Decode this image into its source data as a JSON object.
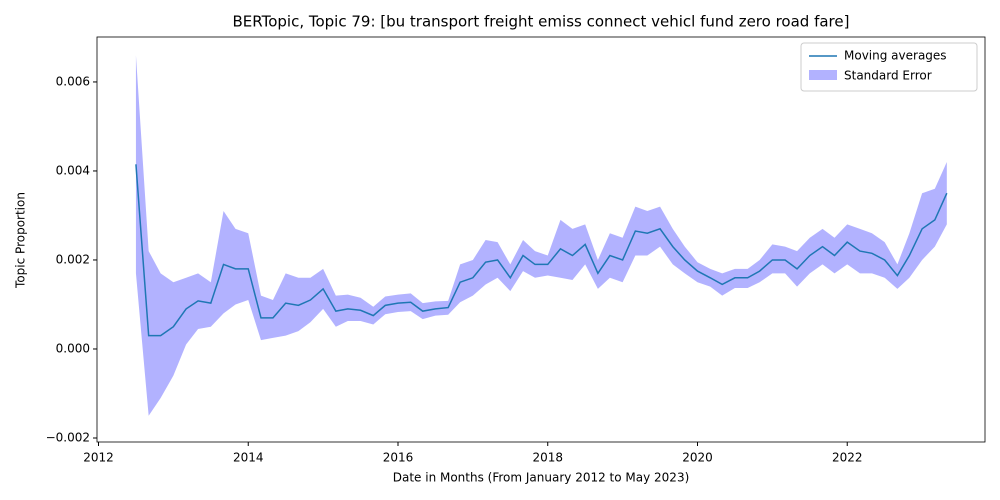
{
  "chart_data": {
    "type": "line",
    "title": "BERTopic, Topic 79: [bu transport freight emiss connect vehicl fund zero road fare]",
    "x_label": "Date in Months (From January 2012 to May 2023)",
    "y_label": "Topic Proportion",
    "x": [
      2012.5,
      2012.67,
      2012.83,
      2013.0,
      2013.17,
      2013.33,
      2013.5,
      2013.67,
      2013.83,
      2014.0,
      2014.17,
      2014.33,
      2014.5,
      2014.67,
      2014.83,
      2015.0,
      2015.17,
      2015.33,
      2015.5,
      2015.67,
      2015.83,
      2016.0,
      2016.17,
      2016.33,
      2016.5,
      2016.67,
      2016.83,
      2017.0,
      2017.17,
      2017.33,
      2017.5,
      2017.67,
      2017.83,
      2018.0,
      2018.17,
      2018.33,
      2018.5,
      2018.67,
      2018.83,
      2019.0,
      2019.17,
      2019.33,
      2019.5,
      2019.67,
      2019.83,
      2020.0,
      2020.17,
      2020.33,
      2020.5,
      2020.67,
      2020.83,
      2021.0,
      2021.17,
      2021.33,
      2021.5,
      2021.67,
      2021.83,
      2022.0,
      2022.17,
      2022.33,
      2022.5,
      2022.67,
      2022.83,
      2023.0,
      2023.17,
      2023.33
    ],
    "series": [
      {
        "name": "Moving averages",
        "color": "#1f77b4",
        "values": [
          0.00415,
          0.0003,
          0.0003,
          0.0005,
          0.0009,
          0.00108,
          0.00103,
          0.0019,
          0.0018,
          0.0018,
          0.0007,
          0.0007,
          0.00103,
          0.00098,
          0.0011,
          0.00135,
          0.00085,
          0.0009,
          0.00087,
          0.00075,
          0.00098,
          0.00103,
          0.00105,
          0.00085,
          0.0009,
          0.00093,
          0.0015,
          0.0016,
          0.00195,
          0.002,
          0.0016,
          0.0021,
          0.0019,
          0.0019,
          0.00225,
          0.0021,
          0.00235,
          0.0017,
          0.0021,
          0.002,
          0.00265,
          0.0026,
          0.0027,
          0.0023,
          0.002,
          0.00175,
          0.0016,
          0.00145,
          0.0016,
          0.0016,
          0.00175,
          0.002,
          0.002,
          0.0018,
          0.0021,
          0.0023,
          0.0021,
          0.0024,
          0.0022,
          0.00215,
          0.002,
          0.00165,
          0.0021,
          0.0027,
          0.0029,
          0.0035
        ]
      }
    ],
    "band": {
      "name": "Standard Error",
      "color": "#0000ff",
      "upper": [
        0.0066,
        0.0022,
        0.0017,
        0.0015,
        0.0016,
        0.0017,
        0.0015,
        0.0031,
        0.0027,
        0.0026,
        0.0012,
        0.0011,
        0.0017,
        0.0016,
        0.0016,
        0.0018,
        0.0012,
        0.00122,
        0.00115,
        0.00095,
        0.00118,
        0.00122,
        0.00125,
        0.00103,
        0.00107,
        0.00108,
        0.0019,
        0.002,
        0.00245,
        0.0024,
        0.0019,
        0.00245,
        0.0022,
        0.0021,
        0.0029,
        0.0027,
        0.0028,
        0.002,
        0.0026,
        0.0025,
        0.0032,
        0.0031,
        0.0032,
        0.0027,
        0.0023,
        0.00195,
        0.0018,
        0.0017,
        0.0018,
        0.0018,
        0.002,
        0.00235,
        0.0023,
        0.0022,
        0.0025,
        0.0027,
        0.0025,
        0.0028,
        0.0027,
        0.0026,
        0.0024,
        0.0019,
        0.0026,
        0.0035,
        0.0036,
        0.0042
      ],
      "lower": [
        0.0017,
        -0.0015,
        -0.0011,
        -0.0006,
        0.0001,
        0.00045,
        0.0005,
        0.0008,
        0.001,
        0.0011,
        0.0002,
        0.00025,
        0.0003,
        0.0004,
        0.0006,
        0.0009,
        0.0005,
        0.00063,
        0.00063,
        0.00055,
        0.00078,
        0.00083,
        0.00085,
        0.00067,
        0.00075,
        0.00077,
        0.00105,
        0.0012,
        0.00145,
        0.0016,
        0.0013,
        0.00175,
        0.0016,
        0.00165,
        0.0016,
        0.00155,
        0.0019,
        0.00135,
        0.0016,
        0.0015,
        0.0021,
        0.0021,
        0.0023,
        0.0019,
        0.0017,
        0.0015,
        0.0014,
        0.0012,
        0.00137,
        0.00137,
        0.0015,
        0.0017,
        0.0017,
        0.0014,
        0.0017,
        0.0019,
        0.0017,
        0.0019,
        0.0017,
        0.0017,
        0.0016,
        0.00135,
        0.0016,
        0.002,
        0.0023,
        0.0028
      ]
    },
    "xlim": [
      2011.98,
      2023.84
    ],
    "ylim": [
      -0.00209,
      0.00701
    ],
    "xticks": [
      2012,
      2014,
      2016,
      2018,
      2020,
      2022
    ],
    "yticks": [
      {
        "value": -0.002,
        "label": "−0.002"
      },
      {
        "value": 0,
        "label": "0.000"
      },
      0.002,
      0.004,
      0.006
    ],
    "legend": "upper right"
  }
}
